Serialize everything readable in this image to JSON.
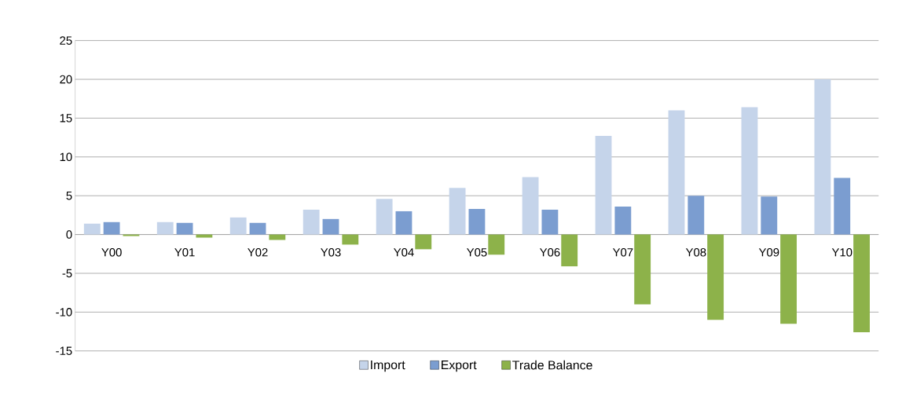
{
  "chart_data": {
    "type": "bar",
    "categories": [
      "Y00",
      "Y01",
      "Y02",
      "Y03",
      "Y04",
      "Y05",
      "Y06",
      "Y07",
      "Y08",
      "Y09",
      "Y10"
    ],
    "series": [
      {
        "name": "Import",
        "color": "#c5d4ea",
        "values": [
          1.4,
          1.6,
          2.2,
          3.2,
          4.6,
          6.0,
          7.4,
          12.7,
          16.0,
          16.4,
          20.0
        ]
      },
      {
        "name": "Export",
        "color": "#7b9dd0",
        "values": [
          1.6,
          1.5,
          1.5,
          2.0,
          3.0,
          3.3,
          3.2,
          3.6,
          5.0,
          4.9,
          7.3
        ]
      },
      {
        "name": "Trade Balance",
        "color": "#8db24a",
        "values": [
          -0.2,
          -0.4,
          -0.7,
          -1.3,
          -1.9,
          -2.6,
          -4.1,
          -9.0,
          -11.0,
          -11.5,
          -12.6
        ]
      }
    ],
    "ylim": [
      -15,
      25
    ],
    "yticks": [
      -15,
      -10,
      -5,
      0,
      5,
      10,
      15,
      20,
      25
    ],
    "grid": "y",
    "legend": "bottom"
  }
}
